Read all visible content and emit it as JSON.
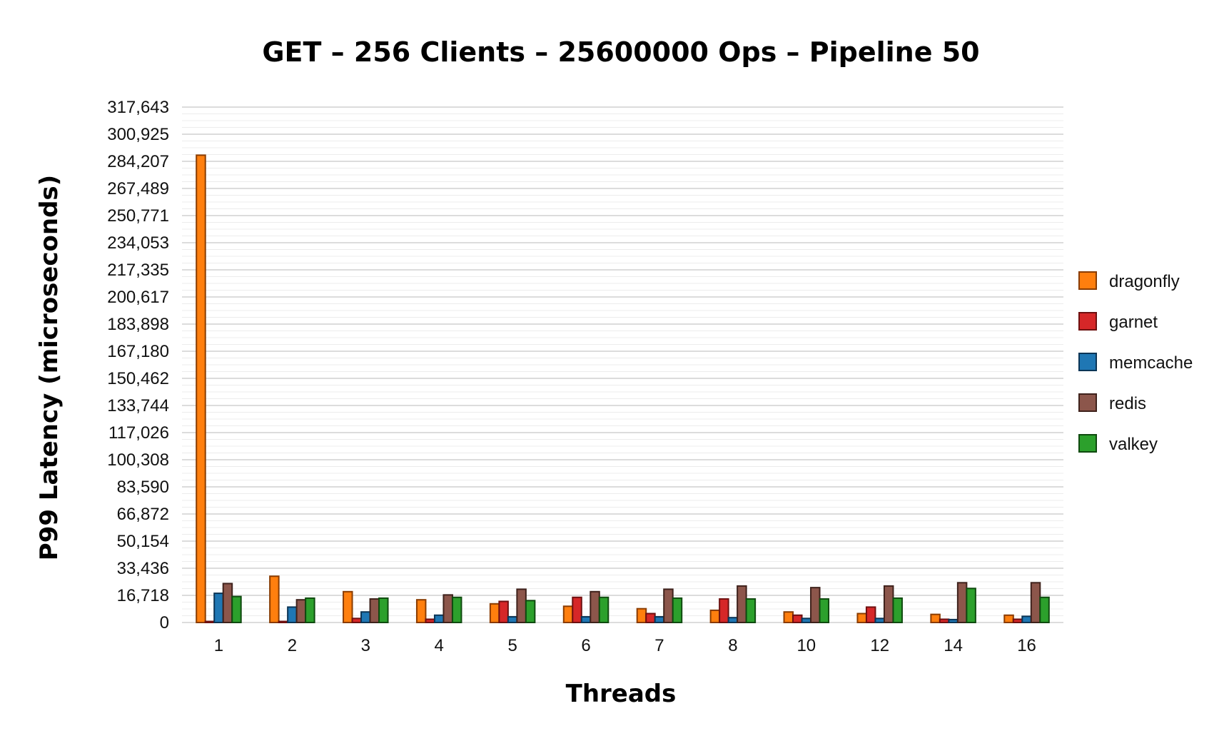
{
  "chart_data": {
    "type": "bar",
    "title": "GET – 256 Clients – 25600000 Ops – Pipeline 50",
    "xlabel": "Threads",
    "ylabel": "P99 Latency (microseconds)",
    "categories": [
      "1",
      "2",
      "3",
      "4",
      "5",
      "6",
      "7",
      "8",
      "10",
      "12",
      "14",
      "16"
    ],
    "ylim": [
      0,
      317643
    ],
    "yticks": [
      "0",
      "16,718",
      "33,436",
      "50,154",
      "66,872",
      "83,590",
      "100,308",
      "117,026",
      "133,744",
      "150,462",
      "167,180",
      "183,898",
      "200,617",
      "217,335",
      "234,053",
      "250,771",
      "267,489",
      "284,207",
      "300,925",
      "317,643"
    ],
    "grid": true,
    "legend_position": "right",
    "series": [
      {
        "name": "dragonfly",
        "color": "#ff7f0e",
        "edge": "#8a3c00",
        "values": [
          288000,
          28500,
          19000,
          14000,
          11500,
          10000,
          8500,
          7500,
          6500,
          5500,
          5000,
          4500
        ]
      },
      {
        "name": "garnet",
        "color": "#d62728",
        "edge": "#6e1010",
        "values": [
          300,
          400,
          2500,
          2000,
          13000,
          15500,
          5500,
          14500,
          4500,
          9500,
          2000,
          2000
        ]
      },
      {
        "name": "memcache",
        "color": "#1f77b4",
        "edge": "#0b3556",
        "values": [
          18000,
          9500,
          6500,
          4500,
          3500,
          3500,
          3500,
          3000,
          2500,
          2500,
          1800,
          3800
        ]
      },
      {
        "name": "redis",
        "color": "#8c564b",
        "edge": "#3f221c",
        "values": [
          24000,
          14000,
          14500,
          17000,
          20500,
          19000,
          20500,
          22500,
          21500,
          22500,
          24500,
          24500
        ]
      },
      {
        "name": "valkey",
        "color": "#2ca02c",
        "edge": "#0f4a0f",
        "values": [
          16000,
          15000,
          15000,
          15500,
          13500,
          15500,
          15000,
          14500,
          14500,
          15000,
          21000,
          15500
        ]
      }
    ]
  }
}
